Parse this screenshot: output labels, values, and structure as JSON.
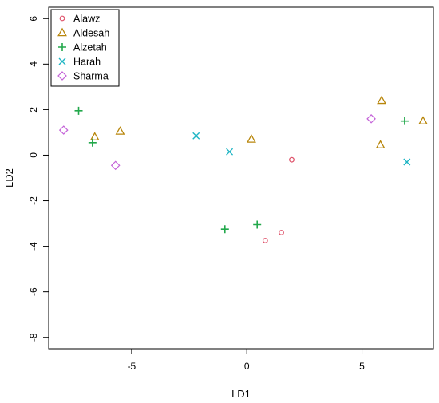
{
  "chart_data": {
    "type": "scatter",
    "xlabel": "LD1",
    "ylabel": "LD2",
    "xlim": [
      -8.6,
      8.1
    ],
    "ylim": [
      -8.5,
      6.5
    ],
    "x_ticks": [
      -5,
      0,
      5
    ],
    "y_ticks": [
      -8,
      -6,
      -4,
      -2,
      0,
      2,
      4,
      6
    ],
    "grid": false,
    "legend_position": "top-left",
    "series": [
      {
        "name": "Alawz",
        "marker": "circle",
        "color": "#DF536B",
        "points": [
          [
            1.95,
            -0.2
          ],
          [
            1.5,
            -3.4
          ],
          [
            0.8,
            -3.75
          ]
        ]
      },
      {
        "name": "Aldesah",
        "marker": "triangle",
        "color": "#B8860B",
        "points": [
          [
            -6.6,
            0.8
          ],
          [
            -5.5,
            1.05
          ],
          [
            0.2,
            0.7
          ],
          [
            5.85,
            2.4
          ],
          [
            7.65,
            1.5
          ],
          [
            5.8,
            0.45
          ]
        ]
      },
      {
        "name": "Alzetah",
        "marker": "plus",
        "color": "#22A84B",
        "points": [
          [
            -7.3,
            1.95
          ],
          [
            -6.7,
            0.55
          ],
          [
            -0.95,
            -3.25
          ],
          [
            0.45,
            -3.05
          ],
          [
            6.85,
            1.5
          ]
        ]
      },
      {
        "name": "Harah",
        "marker": "cross",
        "color": "#1FB5C4",
        "points": [
          [
            -2.2,
            0.85
          ],
          [
            -0.75,
            0.15
          ],
          [
            6.95,
            -0.3
          ]
        ]
      },
      {
        "name": "Sharma",
        "marker": "diamond",
        "color": "#C463D8",
        "points": [
          [
            -7.95,
            1.1
          ],
          [
            -5.7,
            -0.45
          ],
          [
            5.4,
            1.6
          ]
        ]
      }
    ]
  }
}
